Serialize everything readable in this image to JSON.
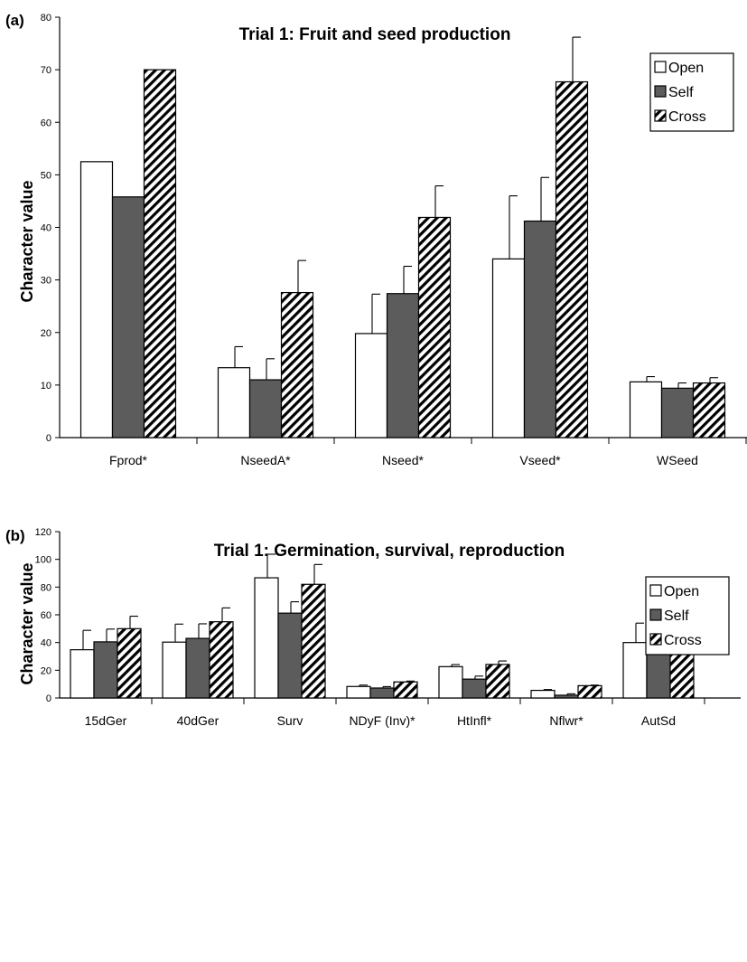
{
  "chart_data": [
    {
      "type": "bar",
      "panel_label": "(a)",
      "title": "Trial 1: Fruit and seed production",
      "xlabel": "",
      "ylabel": "Character value",
      "ylim": [
        0,
        80
      ],
      "yticks": [
        0,
        10,
        20,
        30,
        40,
        50,
        60,
        70,
        80
      ],
      "categories": [
        "Fprod*",
        "NseedA*",
        "Nseed*",
        "Vseed*",
        "WSeed"
      ],
      "series": [
        {
          "name": "Open",
          "values": [
            52.5,
            13.3,
            19.8,
            34.0,
            10.6
          ],
          "errors": [
            null,
            4.0,
            7.5,
            12.0,
            1.0
          ]
        },
        {
          "name": "Self",
          "values": [
            45.8,
            11.0,
            27.4,
            41.2,
            9.4
          ],
          "errors": [
            null,
            4.0,
            5.2,
            8.3,
            1.0
          ]
        },
        {
          "name": "Cross",
          "values": [
            70.0,
            27.6,
            41.9,
            67.7,
            10.4
          ],
          "errors": [
            null,
            6.1,
            6.0,
            8.5,
            1.0
          ]
        }
      ],
      "legend_position": "top-right",
      "grid": false
    },
    {
      "type": "bar",
      "panel_label": "(b)",
      "title": "Trial 1: Germination, survival, reproduction",
      "xlabel": "",
      "ylabel": "Character value",
      "ylim": [
        0,
        120
      ],
      "yticks": [
        0,
        20,
        40,
        60,
        80,
        100,
        120
      ],
      "categories": [
        "15dGer",
        "40dGer",
        "Surv",
        "NDyF (Inv)*",
        "HtInfl*",
        "Nflwr*",
        "AutSd"
      ],
      "series": [
        {
          "name": "Open",
          "values": [
            34.8,
            40.3,
            86.7,
            8.3,
            22.6,
            5.5,
            40.0
          ],
          "errors": [
            14.0,
            13.0,
            17.0,
            1.0,
            1.5,
            0.6,
            14.0
          ]
        },
        {
          "name": "Self",
          "values": [
            40.5,
            43.0,
            61.2,
            7.2,
            13.6,
            2.0,
            36.6
          ],
          "errors": [
            9.2,
            10.5,
            8.2,
            1.0,
            2.2,
            1.0,
            12.8
          ]
        },
        {
          "name": "Cross",
          "values": [
            50.0,
            55.0,
            82.0,
            11.6,
            24.2,
            8.9,
            35.0
          ],
          "errors": [
            9.0,
            10.0,
            14.3,
            0.6,
            2.5,
            0.4,
            8.8
          ]
        }
      ],
      "legend_position": "top-right",
      "grid": false
    }
  ],
  "colors": {
    "open": "#ffffff",
    "self": "#5c5c5c",
    "cross_hatch": "#000000",
    "axis": "#000000"
  }
}
